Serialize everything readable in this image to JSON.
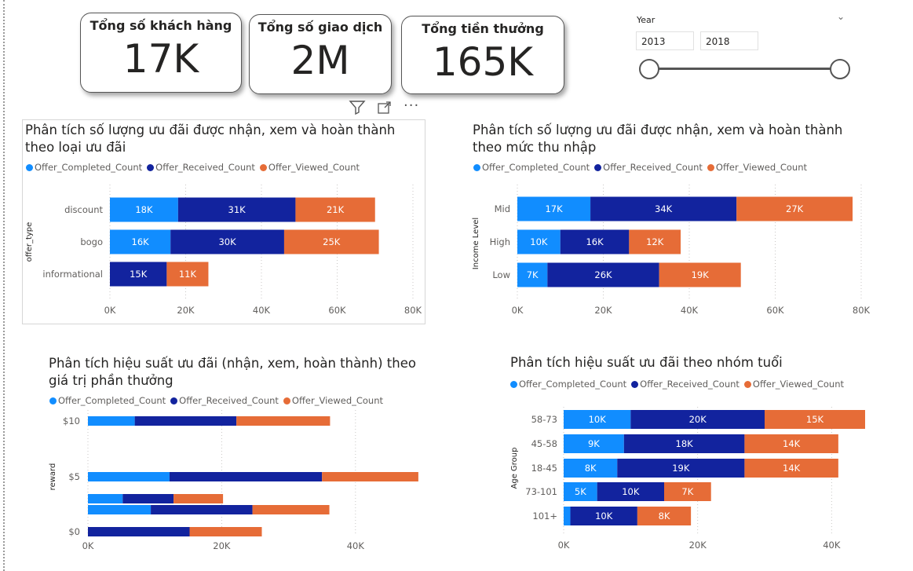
{
  "kpis": [
    {
      "title": "Tổng số khách hàng",
      "value": "17K"
    },
    {
      "title": "Tổng số giao dịch",
      "value": "2M"
    },
    {
      "title": "Tổng tiền thưởng",
      "value": "165K"
    }
  ],
  "slicer": {
    "title": "Year",
    "start": "2013",
    "end": "2018"
  },
  "colors": {
    "completed": "#118DFF",
    "received": "#12239E",
    "viewed": "#E66C37"
  },
  "series_names": [
    "Offer_Completed_Count",
    "Offer_Received_Count",
    "Offer_Viewed_Count"
  ],
  "chart_data": [
    {
      "type": "bar",
      "orientation": "horizontal-stacked",
      "title": "Phân tích số lượng ưu đãi được nhận, xem và hoàn thành theo loại ưu đãi",
      "ylabel": "offer_type",
      "categories": [
        "discount",
        "bogo",
        "informational"
      ],
      "series": [
        {
          "name": "Offer_Completed_Count",
          "values": [
            18,
            16,
            0
          ],
          "labels": [
            "18K",
            "16K",
            ""
          ]
        },
        {
          "name": "Offer_Received_Count",
          "values": [
            31,
            30,
            15
          ],
          "labels": [
            "31K",
            "30K",
            "15K"
          ]
        },
        {
          "name": "Offer_Viewed_Count",
          "values": [
            21,
            25,
            11
          ],
          "labels": [
            "21K",
            "25K",
            "11K"
          ]
        }
      ],
      "xlim": [
        0,
        80
      ],
      "xticks": [
        "0K",
        "20K",
        "40K",
        "60K",
        "80K"
      ],
      "legend": "top-left",
      "grid": true
    },
    {
      "type": "bar",
      "orientation": "horizontal-stacked",
      "title": "Phân tích số lượng ưu đãi được nhận, xem và hoàn thành theo mức thu nhập",
      "ylabel": "Income Level",
      "categories": [
        "Mid",
        "High",
        "Low"
      ],
      "series": [
        {
          "name": "Offer_Completed_Count",
          "values": [
            17,
            10,
            7
          ],
          "labels": [
            "17K",
            "10K",
            "7K"
          ]
        },
        {
          "name": "Offer_Received_Count",
          "values": [
            34,
            16,
            26
          ],
          "labels": [
            "34K",
            "16K",
            "26K"
          ]
        },
        {
          "name": "Offer_Viewed_Count",
          "values": [
            27,
            12,
            19
          ],
          "labels": [
            "27K",
            "12K",
            "19K"
          ]
        }
      ],
      "xlim": [
        0,
        80
      ],
      "xticks": [
        "0K",
        "20K",
        "40K",
        "60K",
        "80K"
      ],
      "legend": "top-left",
      "grid": true
    },
    {
      "type": "bar",
      "orientation": "horizontal-stacked",
      "title": "Phân tích hiệu suất ưu đãi (nhận, xem, hoàn thành) theo giá trị phần thưởng",
      "ylabel": "reward",
      "y_scale": "continuous",
      "yticks": [
        "$10",
        "$5",
        "$0"
      ],
      "ylim": [
        0,
        10
      ],
      "rows": [
        {
          "reward": 10,
          "values": [
            7,
            15.2,
            14
          ]
        },
        {
          "reward": 5,
          "values": [
            12.2,
            22.8,
            14.4
          ]
        },
        {
          "reward": 3,
          "values": [
            5.2,
            7.6,
            7.4
          ]
        },
        {
          "reward": 2,
          "values": [
            9.4,
            15.2,
            11.5
          ]
        },
        {
          "reward": 0,
          "values": [
            0,
            15.2,
            10.8
          ]
        }
      ],
      "xlim": [
        0,
        50
      ],
      "xticks": [
        "0K",
        "20K",
        "40K"
      ],
      "legend": "top-left",
      "grid": true
    },
    {
      "type": "bar",
      "orientation": "horizontal-stacked",
      "title": "Phân tích hiệu suất ưu đãi theo nhóm tuổi",
      "ylabel": "Age Group",
      "categories": [
        "58-73",
        "45-58",
        "18-45",
        "73-101",
        "101+"
      ],
      "series": [
        {
          "name": "Offer_Completed_Count",
          "values": [
            10,
            9,
            8,
            5,
            1
          ],
          "labels": [
            "10K",
            "9K",
            "8K",
            "5K",
            ""
          ]
        },
        {
          "name": "Offer_Received_Count",
          "values": [
            20,
            18,
            19,
            10,
            10
          ],
          "labels": [
            "20K",
            "18K",
            "19K",
            "10K",
            "10K"
          ]
        },
        {
          "name": "Offer_Viewed_Count",
          "values": [
            15,
            14,
            14,
            7,
            8
          ],
          "labels": [
            "15K",
            "14K",
            "14K",
            "7K",
            "8K"
          ]
        }
      ],
      "xlim": [
        0,
        45
      ],
      "xticks": [
        "0K",
        "20K",
        "40K"
      ],
      "legend": "top-left",
      "grid": true
    }
  ]
}
